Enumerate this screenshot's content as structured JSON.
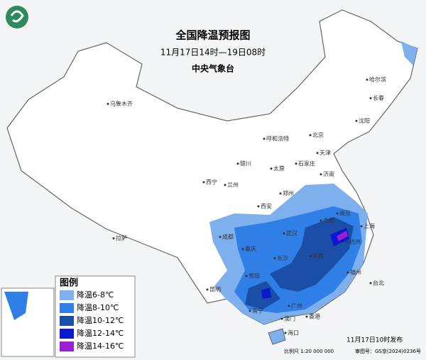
{
  "header": {
    "title": "全国降温预报图",
    "period": "11月17日14时—19日08时",
    "issuer": "中央气象台"
  },
  "cities": [
    "哈尔滨",
    "长春",
    "沈阳",
    "乌鲁木齐",
    "呼和浩特",
    "北京",
    "天津",
    "银川",
    "太原",
    "石家庄",
    "西宁",
    "兰州",
    "济南",
    "郑州",
    "西安",
    "合肥",
    "南京",
    "上海",
    "成都",
    "武汉",
    "杭州",
    "重庆",
    "长沙",
    "南昌",
    "福州",
    "拉萨",
    "贵阳",
    "台北",
    "昆明",
    "南宁",
    "广州",
    "澳门",
    "香港",
    "海口"
  ],
  "legend": {
    "title": "图例",
    "items": [
      {
        "label": "降温6-8℃",
        "color": "#7fb0ee"
      },
      {
        "label": "降温8-10℃",
        "color": "#2f7fe6"
      },
      {
        "label": "降温10-12℃",
        "color": "#1b4ea6"
      },
      {
        "label": "降温12-14℃",
        "color": "#0a18d0"
      },
      {
        "label": "降温14-16℃",
        "color": "#9a1fd0"
      }
    ]
  },
  "footer": {
    "issued": "11月17日10时发布",
    "scale": "比例尺 1:20 000 000",
    "approval": "审图号：GS京(2024)0236号"
  }
}
